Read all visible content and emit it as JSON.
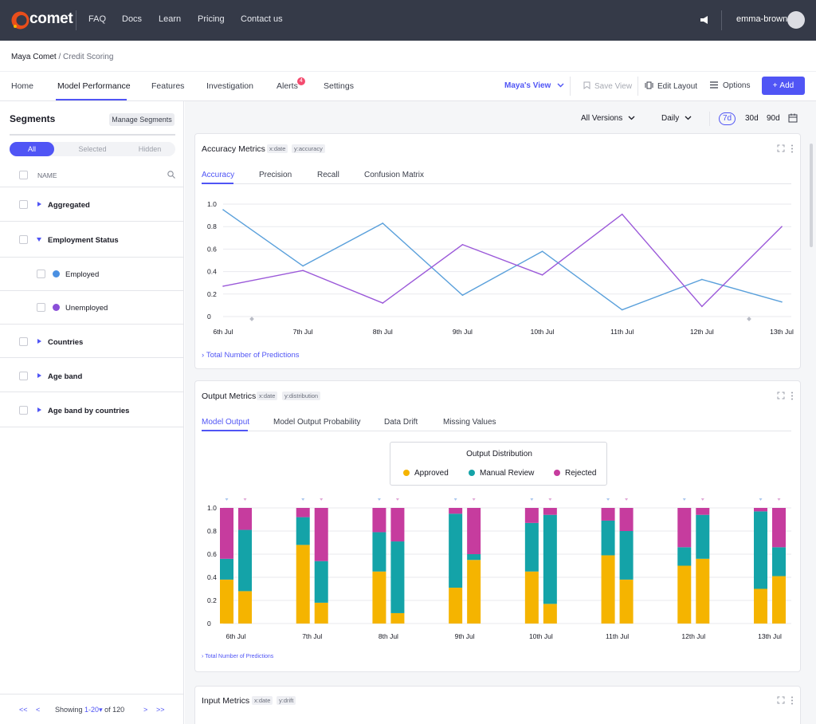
{
  "topnav": {
    "brand": "comet",
    "links": [
      "FAQ",
      "Docs",
      "Learn",
      "Pricing",
      "Contact us"
    ],
    "username": "emma-brown"
  },
  "breadcrumb": {
    "workspace": "Maya Comet",
    "separator": " / ",
    "project": "Credit Scoring"
  },
  "tabs": [
    "Home",
    "Model Performance",
    "Features",
    "Investigation",
    "Alerts",
    "Settings"
  ],
  "alerts_count": "4",
  "toolbar": {
    "view": "Maya's View",
    "save_view": "Save View",
    "edit_layout": "Edit Layout",
    "options": "Options",
    "add": "Add"
  },
  "sidebar": {
    "title": "Segments",
    "manage": "Manage Segments",
    "filter": [
      "All",
      "Selected",
      "Hidden"
    ],
    "column_header": "NAME",
    "groups": [
      {
        "label": "Aggregated"
      },
      {
        "label": "Employment Status",
        "children": [
          {
            "label": "Employed",
            "color": "#4a90e2"
          },
          {
            "label": "Unemployed",
            "color": "#8a4fd8"
          }
        ]
      },
      {
        "label": "Countries"
      },
      {
        "label": "Age band"
      },
      {
        "label": "Age band by countries"
      }
    ],
    "pager": {
      "first": "<<",
      "prev": "<",
      "showing": "Showing",
      "range": "1-20",
      "of": "of 120",
      "next": ">",
      "last": ">>"
    }
  },
  "filters": {
    "versions": "All Versions",
    "granularity": "Daily",
    "periods": [
      "7d",
      "30d",
      "90d"
    ]
  },
  "accuracy_card": {
    "title": "Accuracy Metrics",
    "tag_x": "x:date",
    "tag_y": "y:accuracy",
    "tabs": [
      "Accuracy",
      "Precision",
      "Recall",
      "Confusion Matrix"
    ],
    "footer": "Total Number of Predictions"
  },
  "output_card": {
    "title": "Output Metrics",
    "tag_x": "x:date",
    "tag_y": "y:distribution",
    "tabs": [
      "Model Output",
      "Model Output Probability",
      "Data Drift",
      "Missing Values"
    ],
    "legend_title": "Output Distribution",
    "footer": "Total Number of Predictions"
  },
  "input_card": {
    "title": "Input Metrics",
    "tag_x": "x:date",
    "tag_y": "y:drift"
  },
  "colors": {
    "accent": "#5055f5",
    "approved": "#f5b400",
    "manual": "#14a3a8",
    "rejected": "#c63c9e",
    "line_blue": "#5aa0db",
    "line_purple": "#9b59d9"
  },
  "chart_data": [
    {
      "type": "line",
      "x": [
        "6th Jul",
        "7th Jul",
        "8th Jul",
        "9th Jul",
        "10th Jul",
        "11th Jul",
        "12th Jul",
        "13th Jul"
      ],
      "yticks": [
        "0",
        "0.2",
        "0.4",
        "0.6",
        "0.8",
        "1.0"
      ],
      "ylim": [
        0,
        1
      ],
      "series": [
        {
          "color": "#5aa0db",
          "values": [
            0.95,
            0.45,
            0.83,
            0.19,
            0.58,
            0.06,
            0.33,
            0.13
          ]
        },
        {
          "color": "#9b59d9",
          "values": [
            0.27,
            0.41,
            0.12,
            0.64,
            0.37,
            0.91,
            0.09,
            0.8
          ]
        }
      ]
    },
    {
      "type": "bar",
      "stacked": true,
      "categories": [
        "6th Jul",
        "7th Jul",
        "8th Jul",
        "9th Jul",
        "10th Jul",
        "11th Jul",
        "12th Jul",
        "13th Jul"
      ],
      "yticks": [
        "0",
        "0.2",
        "0.4",
        "0.6",
        "0.8",
        "1.0"
      ],
      "ylim": [
        0,
        1
      ],
      "series": [
        {
          "name": "Approved",
          "color": "#f5b400",
          "values": [
            [
              0.38,
              0.28
            ],
            [
              0.68,
              0.18
            ],
            [
              0.45,
              0.09
            ],
            [
              0.31,
              0.55
            ],
            [
              0.45,
              0.17
            ],
            [
              0.59,
              0.38
            ],
            [
              0.5,
              0.56
            ],
            [
              0.3,
              0.41
            ]
          ]
        },
        {
          "name": "Manual Review",
          "color": "#14a3a8",
          "values": [
            [
              0.18,
              0.53
            ],
            [
              0.24,
              0.36
            ],
            [
              0.34,
              0.62
            ],
            [
              0.64,
              0.05
            ],
            [
              0.42,
              0.77
            ],
            [
              0.3,
              0.42
            ],
            [
              0.16,
              0.38
            ],
            [
              0.67,
              0.25
            ]
          ]
        },
        {
          "name": "Rejected",
          "color": "#c63c9e",
          "values": [
            [
              0.44,
              0.19
            ],
            [
              0.08,
              0.46
            ],
            [
              0.21,
              0.29
            ],
            [
              0.05,
              0.4
            ],
            [
              0.13,
              0.06
            ],
            [
              0.11,
              0.2
            ],
            [
              0.34,
              0.06
            ],
            [
              0.03,
              0.34
            ]
          ]
        }
      ]
    }
  ]
}
